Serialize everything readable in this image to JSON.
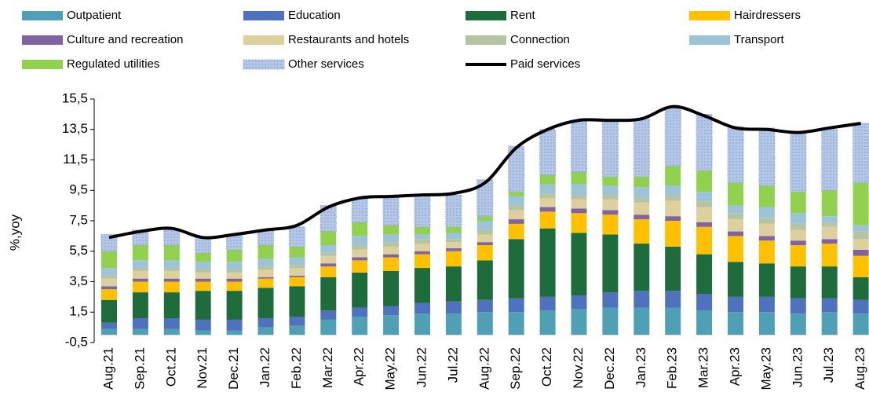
{
  "chart_data": {
    "type": "bar",
    "y_label": "%,yoy",
    "categories": [
      "Aug.21",
      "Sep.21",
      "Oct.21",
      "Nov.21",
      "Dec.21",
      "Jan.22",
      "Feb.22",
      "Mar.22",
      "Apr.22",
      "May.22",
      "Jun.22",
      "Jul.22",
      "Aug.22",
      "Sep.22",
      "Oct.22",
      "Nov.22",
      "Dec.22",
      "Jan.23",
      "Feb.23",
      "Mar.23",
      "Apr.23",
      "May.23",
      "Jun.23",
      "Jul.23",
      "Aug.23"
    ],
    "stacked": true,
    "ylim": [
      -0.5,
      15.5
    ],
    "yticks": [
      {
        "value": -0.5,
        "label": "-0,5"
      },
      {
        "value": 1.5,
        "label": "1,5"
      },
      {
        "value": 3.5,
        "label": "3,5"
      },
      {
        "value": 5.5,
        "label": "5,5"
      },
      {
        "value": 7.5,
        "label": "7,5"
      },
      {
        "value": 9.5,
        "label": "9,5"
      },
      {
        "value": 11.5,
        "label": "11,5"
      },
      {
        "value": 13.5,
        "label": "13,5"
      },
      {
        "value": 15.5,
        "label": "15,5"
      }
    ],
    "series": [
      {
        "name": "Outpatient",
        "color": "#4f9fb5",
        "values": [
          0.4,
          0.4,
          0.4,
          0.3,
          0.3,
          0.5,
          0.6,
          1.0,
          1.2,
          1.3,
          1.4,
          1.4,
          1.5,
          1.5,
          1.6,
          1.7,
          1.8,
          1.8,
          1.8,
          1.6,
          1.5,
          1.5,
          1.4,
          1.5,
          1.4
        ]
      },
      {
        "name": "Education",
        "color": "#4f72be",
        "values": [
          0.4,
          0.7,
          0.7,
          0.7,
          0.7,
          0.6,
          0.6,
          0.6,
          0.6,
          0.6,
          0.7,
          0.8,
          0.8,
          0.9,
          0.9,
          0.9,
          1.0,
          1.1,
          1.1,
          1.1,
          1.0,
          1.0,
          1.0,
          0.9,
          0.9
        ]
      },
      {
        "name": "Rent",
        "color": "#1e6b3c",
        "values": [
          1.5,
          1.7,
          1.7,
          1.9,
          1.9,
          2.0,
          2.0,
          2.2,
          2.3,
          2.3,
          2.3,
          2.3,
          2.6,
          3.9,
          4.5,
          4.1,
          3.8,
          3.1,
          2.9,
          2.6,
          2.3,
          2.2,
          2.1,
          2.1,
          1.5
        ]
      },
      {
        "name": "Hairdressers",
        "color": "#ffc000",
        "values": [
          0.7,
          0.7,
          0.7,
          0.6,
          0.6,
          0.6,
          0.6,
          0.7,
          0.8,
          0.9,
          0.9,
          1.0,
          1.0,
          1.0,
          1.1,
          1.3,
          1.3,
          1.6,
          1.7,
          1.8,
          1.7,
          1.5,
          1.4,
          1.5,
          1.4
        ]
      },
      {
        "name": "Culture and recreation",
        "color": "#8064a2",
        "values": [
          0.2,
          0.2,
          0.2,
          0.2,
          0.2,
          0.1,
          0.1,
          0.2,
          0.2,
          0.2,
          0.2,
          0.2,
          0.2,
          0.3,
          0.3,
          0.3,
          0.3,
          0.3,
          0.3,
          0.3,
          0.3,
          0.3,
          0.3,
          0.3,
          0.4
        ]
      },
      {
        "name": "Restaurants and hotels",
        "color": "#ddd09c",
        "values": [
          0.5,
          0.5,
          0.5,
          0.4,
          0.4,
          0.5,
          0.5,
          0.5,
          0.5,
          0.5,
          0.5,
          0.4,
          0.5,
          0.6,
          0.6,
          0.6,
          0.7,
          0.8,
          1.0,
          1.0,
          0.8,
          0.8,
          0.7,
          0.8,
          0.7
        ]
      },
      {
        "name": "Connection",
        "color": "#b5c4a3",
        "values": [
          0.2,
          0.2,
          0.2,
          0.2,
          0.2,
          0.2,
          0.2,
          0.2,
          0.3,
          0.3,
          0.3,
          0.2,
          0.3,
          0.3,
          0.3,
          0.3,
          0.3,
          0.3,
          0.4,
          0.4,
          0.4,
          0.4,
          0.4,
          0.3,
          0.5
        ]
      },
      {
        "name": "Transport",
        "color": "#9dc3d9",
        "values": [
          0.5,
          0.5,
          0.5,
          0.5,
          0.5,
          0.5,
          0.5,
          0.5,
          0.6,
          0.5,
          0.3,
          0.4,
          0.6,
          0.6,
          0.6,
          0.7,
          0.6,
          0.7,
          0.6,
          0.6,
          0.5,
          0.7,
          0.7,
          0.4,
          0.4
        ]
      },
      {
        "name": "Regulated utilities",
        "color": "#92d050",
        "values": [
          1.1,
          1.0,
          1.0,
          0.6,
          0.8,
          0.9,
          0.7,
          0.9,
          0.9,
          0.6,
          0.5,
          0.4,
          0.3,
          0.3,
          0.6,
          0.8,
          0.6,
          0.7,
          1.3,
          1.4,
          1.5,
          1.4,
          1.4,
          1.7,
          2.8
        ]
      },
      {
        "name": "Other services",
        "color": "#b4c7e7",
        "pattern": "dotted",
        "values": [
          1.1,
          1.0,
          1.1,
          1.0,
          1.0,
          1.0,
          1.3,
          1.7,
          1.6,
          1.9,
          2.1,
          2.1,
          2.4,
          3.0,
          3.0,
          3.4,
          3.7,
          3.8,
          3.9,
          3.7,
          3.7,
          3.8,
          3.9,
          4.0,
          3.9
        ]
      },
      {
        "name": "Paid services",
        "type": "line",
        "color": "#000000",
        "values": [
          6.4,
          6.8,
          7.0,
          6.4,
          6.6,
          6.9,
          7.2,
          8.4,
          9.0,
          9.1,
          9.2,
          9.3,
          10.0,
          12.3,
          13.5,
          14.1,
          14.1,
          14.2,
          15.0,
          14.4,
          13.6,
          13.5,
          13.3,
          13.6,
          13.9
        ]
      }
    ]
  }
}
